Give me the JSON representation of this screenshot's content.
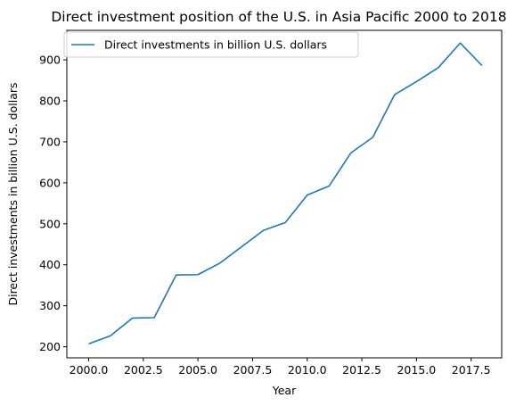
{
  "chart_data": {
    "type": "line",
    "title": "Direct investment position of the U.S. in Asia Pacific 2000 to 2018",
    "xlabel": "Year",
    "ylabel": "Direct investments in billion U.S. dollars",
    "xlim": [
      1999.0,
      2018.9
    ],
    "ylim": [
      173,
      972
    ],
    "xticks": [
      2000.0,
      2002.5,
      2005.0,
      2007.5,
      2010.0,
      2012.5,
      2015.0,
      2017.5
    ],
    "xtick_labels": [
      "2000.0",
      "2002.5",
      "2005.0",
      "2007.5",
      "2010.0",
      "2012.5",
      "2015.0",
      "2017.5"
    ],
    "yticks": [
      200,
      300,
      400,
      500,
      600,
      700,
      800,
      900
    ],
    "ytick_labels": [
      "200",
      "300",
      "400",
      "500",
      "600",
      "700",
      "800",
      "900"
    ],
    "grid": false,
    "legend_position": "top-left",
    "series": [
      {
        "name": "Direct investments in billion U.S. dollars",
        "color": "#1f77b4",
        "x": [
          2000,
          2001,
          2002,
          2003,
          2004,
          2005,
          2006,
          2007,
          2008,
          2009,
          2010,
          2011,
          2012,
          2013,
          2014,
          2015,
          2016,
          2017,
          2018
        ],
        "y": [
          207,
          227,
          270,
          271,
          375,
          376,
          404,
          444,
          484,
          503,
          570,
          592,
          673,
          711,
          815,
          847,
          881,
          941,
          886
        ]
      }
    ]
  }
}
